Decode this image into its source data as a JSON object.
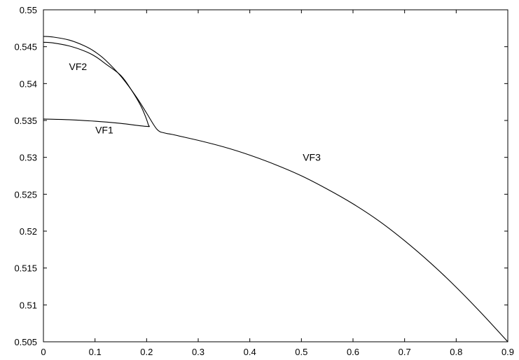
{
  "chart_data": {
    "type": "line",
    "title": "",
    "xlabel": "",
    "ylabel": "",
    "xlim": [
      0,
      0.9
    ],
    "ylim": [
      0.505,
      0.55
    ],
    "grid": false,
    "xticks": [
      0,
      0.1,
      0.2,
      0.3,
      0.4,
      0.5,
      0.6,
      0.7,
      0.8,
      0.9
    ],
    "xtick_labels": [
      "0",
      "0.1",
      "0.2",
      "0.3",
      "0.4",
      "0.5",
      "0.6",
      "0.7",
      "0.8",
      "0.9"
    ],
    "yticks": [
      0.505,
      0.51,
      0.515,
      0.52,
      0.525,
      0.53,
      0.535,
      0.54,
      0.545,
      0.55
    ],
    "ytick_labels": [
      "0.505",
      "0.51",
      "0.515",
      "0.52",
      "0.525",
      "0.53",
      "0.535",
      "0.54",
      "0.545",
      "0.55"
    ],
    "series": [
      {
        "key": "outer-curve",
        "x": [
          0,
          0.02,
          0.05,
          0.08,
          0.1,
          0.12,
          0.15,
          0.18,
          0.2,
          0.22,
          0.235,
          0.25,
          0.3,
          0.35,
          0.4,
          0.45,
          0.5,
          0.55,
          0.6,
          0.65,
          0.7,
          0.75,
          0.8,
          0.85,
          0.9
        ],
        "y": [
          0.5464,
          0.5463,
          0.5459,
          0.5451,
          0.5443,
          0.5432,
          0.541,
          0.5382,
          0.536,
          0.5338,
          0.5333,
          0.5331,
          0.5323,
          0.5314,
          0.5303,
          0.529,
          0.5275,
          0.5257,
          0.5237,
          0.5214,
          0.5187,
          0.5157,
          0.5124,
          0.5088,
          0.505
        ]
      },
      {
        "key": "inner-loop",
        "x": [
          0,
          0.05,
          0.1,
          0.15,
          0.2,
          0.203,
          0.19,
          0.17,
          0.15,
          0.12,
          0.1,
          0.08,
          0.05,
          0.02,
          0
        ],
        "y": [
          0.5352,
          0.5351,
          0.5349,
          0.5346,
          0.5342,
          0.5345,
          0.5368,
          0.5392,
          0.5411,
          0.5427,
          0.5437,
          0.5444,
          0.5451,
          0.5455,
          0.5456
        ]
      }
    ],
    "annotations": [
      {
        "text": "VF1",
        "x": 0.118,
        "y": 0.5337
      },
      {
        "text": "VF2",
        "x": 0.067,
        "y": 0.5423
      },
      {
        "text": "VF3",
        "x": 0.52,
        "y": 0.53
      }
    ]
  }
}
